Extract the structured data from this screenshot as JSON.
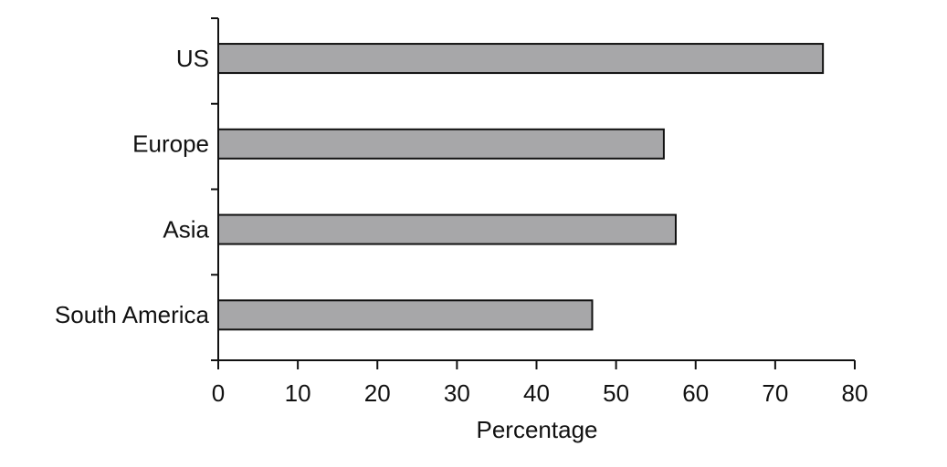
{
  "chart_data": {
    "type": "bar",
    "orientation": "horizontal",
    "categories": [
      "US",
      "Europe",
      "Asia",
      "South America"
    ],
    "values": [
      76,
      56,
      57.5,
      47
    ],
    "color": "#a7a7a9",
    "xlabel": "Percentage",
    "xlim": [
      0,
      80
    ],
    "xticks": [
      0,
      10,
      20,
      30,
      40,
      50,
      60,
      70,
      80
    ],
    "grid": false
  }
}
